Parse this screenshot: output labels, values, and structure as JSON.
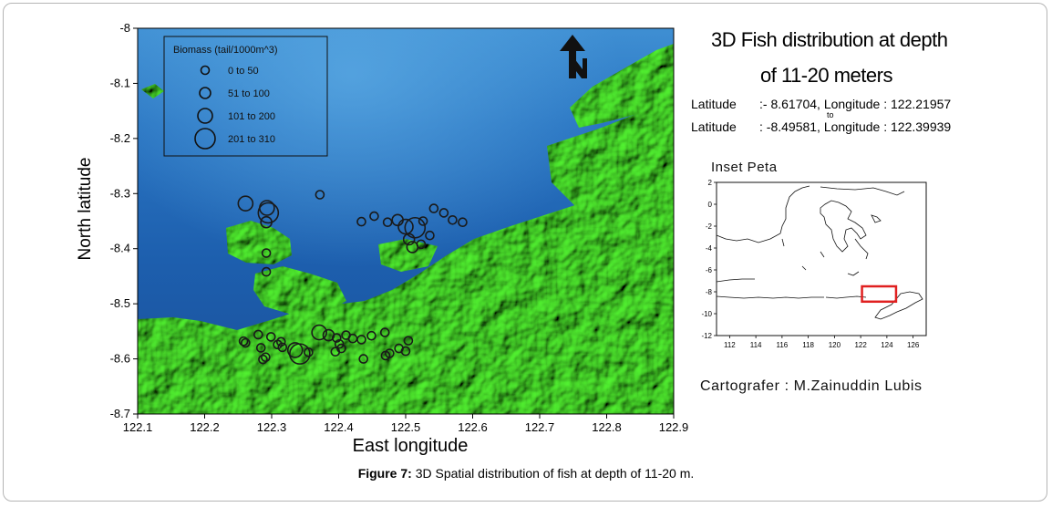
{
  "figure": {
    "caption_bold": "Figure 7:",
    "caption_text": " 3D Spatial distribution of fish at depth of 11-20 m."
  },
  "side_panel": {
    "title_line1": "3D Fish distribution at depth",
    "title_line2": "of 11-20 meters",
    "coord_line1_label": "Latitude",
    "coord_line1_value": ":- 8.61704, Longitude : 122.21957",
    "coord_to": "to",
    "coord_line2_label": "Latitude",
    "coord_line2_value": ": -8.49581, Longitude : 122.39939",
    "inset_label": "Inset Peta",
    "cartographer": "Cartografer : M.Zainuddin Lubis"
  },
  "colors": {
    "sea_deep": "#1e5fb0",
    "sea_light": "#3d8fd0",
    "land": "#49e02c",
    "land_shadow": "#0d2a0a",
    "inset_box": "#e02020"
  },
  "icons": [
    "north-arrow-icon"
  ],
  "chart_data": {
    "type": "scatter",
    "xlabel": "East longitude",
    "ylabel": "North latitude",
    "xlim": [
      122.1,
      122.9
    ],
    "ylim": [
      -8.7,
      -8.0
    ],
    "x_ticks": [
      "122.1",
      "122.2",
      "122.3",
      "122.4",
      "122.5",
      "122.6",
      "122.7",
      "122.8",
      "122.9"
    ],
    "y_ticks": [
      "-8",
      "-8.1",
      "-8.2",
      "-8.3",
      "-8.4",
      "-8.5",
      "-8.6",
      "-8.7"
    ],
    "grid": false,
    "legend_placement": "top-left",
    "legend": {
      "title": "Biomass (tail/1000m^3)",
      "classes": [
        {
          "label": "0   to  50",
          "size_class": 1
        },
        {
          "label": "51   to  100",
          "size_class": 2
        },
        {
          "label": "101  to  200",
          "size_class": 3
        },
        {
          "label": "201  to  310",
          "size_class": 4
        }
      ]
    },
    "points": [
      {
        "x": 122.261,
        "y": -8.318,
        "c": 3
      },
      {
        "x": 122.293,
        "y": -8.326,
        "c": 3
      },
      {
        "x": 122.295,
        "y": -8.335,
        "c": 4
      },
      {
        "x": 122.292,
        "y": -8.352,
        "c": 2
      },
      {
        "x": 122.372,
        "y": -8.302,
        "c": 1
      },
      {
        "x": 122.292,
        "y": -8.408,
        "c": 1
      },
      {
        "x": 122.292,
        "y": -8.442,
        "c": 1
      },
      {
        "x": 122.434,
        "y": -8.351,
        "c": 1
      },
      {
        "x": 122.453,
        "y": -8.341,
        "c": 1
      },
      {
        "x": 122.473,
        "y": -8.352,
        "c": 1
      },
      {
        "x": 122.488,
        "y": -8.348,
        "c": 2
      },
      {
        "x": 122.5,
        "y": -8.36,
        "c": 3
      },
      {
        "x": 122.514,
        "y": -8.362,
        "c": 4
      },
      {
        "x": 122.526,
        "y": -8.35,
        "c": 1
      },
      {
        "x": 122.542,
        "y": -8.327,
        "c": 1
      },
      {
        "x": 122.557,
        "y": -8.335,
        "c": 1
      },
      {
        "x": 122.57,
        "y": -8.348,
        "c": 1
      },
      {
        "x": 122.585,
        "y": -8.352,
        "c": 1
      },
      {
        "x": 122.505,
        "y": -8.383,
        "c": 2
      },
      {
        "x": 122.51,
        "y": -8.397,
        "c": 2
      },
      {
        "x": 122.523,
        "y": -8.392,
        "c": 1
      },
      {
        "x": 122.536,
        "y": -8.376,
        "c": 1
      },
      {
        "x": 122.258,
        "y": -8.568,
        "c": 1
      },
      {
        "x": 122.261,
        "y": -8.571,
        "c": 1
      },
      {
        "x": 122.28,
        "y": -8.556,
        "c": 1
      },
      {
        "x": 122.284,
        "y": -8.58,
        "c": 1
      },
      {
        "x": 122.287,
        "y": -8.601,
        "c": 1
      },
      {
        "x": 122.291,
        "y": -8.597,
        "c": 1
      },
      {
        "x": 122.299,
        "y": -8.56,
        "c": 1
      },
      {
        "x": 122.314,
        "y": -8.569,
        "c": 1
      },
      {
        "x": 122.316,
        "y": -8.579,
        "c": 1
      },
      {
        "x": 122.309,
        "y": -8.574,
        "c": 1
      },
      {
        "x": 122.335,
        "y": -8.584,
        "c": 3
      },
      {
        "x": 122.342,
        "y": -8.591,
        "c": 4
      },
      {
        "x": 122.355,
        "y": -8.588,
        "c": 1
      },
      {
        "x": 122.371,
        "y": -8.552,
        "c": 3
      },
      {
        "x": 122.385,
        "y": -8.557,
        "c": 2
      },
      {
        "x": 122.397,
        "y": -8.562,
        "c": 1
      },
      {
        "x": 122.401,
        "y": -8.573,
        "c": 1
      },
      {
        "x": 122.411,
        "y": -8.557,
        "c": 1
      },
      {
        "x": 122.421,
        "y": -8.563,
        "c": 1
      },
      {
        "x": 122.434,
        "y": -8.565,
        "c": 1
      },
      {
        "x": 122.404,
        "y": -8.581,
        "c": 1
      },
      {
        "x": 122.395,
        "y": -8.587,
        "c": 1
      },
      {
        "x": 122.437,
        "y": -8.6,
        "c": 1
      },
      {
        "x": 122.449,
        "y": -8.558,
        "c": 1
      },
      {
        "x": 122.469,
        "y": -8.552,
        "c": 1
      },
      {
        "x": 122.47,
        "y": -8.594,
        "c": 1
      },
      {
        "x": 122.476,
        "y": -8.59,
        "c": 1
      },
      {
        "x": 122.49,
        "y": -8.581,
        "c": 1
      },
      {
        "x": 122.5,
        "y": -8.586,
        "c": 1
      },
      {
        "x": 122.504,
        "y": -8.567,
        "c": 1
      }
    ]
  },
  "inset_chart": {
    "type": "map",
    "x_ticks": [
      "112",
      "114",
      "116",
      "118",
      "120",
      "122",
      "124",
      "126"
    ],
    "y_ticks": [
      "2",
      "0",
      "-2",
      "-4",
      "-6",
      "-8",
      "-10",
      "-12"
    ],
    "xlim": [
      111,
      127
    ],
    "ylim": [
      -12,
      2
    ],
    "highlight_box": {
      "lon_min": 122.1,
      "lon_max": 124.7,
      "lat_min": -8.9,
      "lat_max": -7.5
    }
  }
}
